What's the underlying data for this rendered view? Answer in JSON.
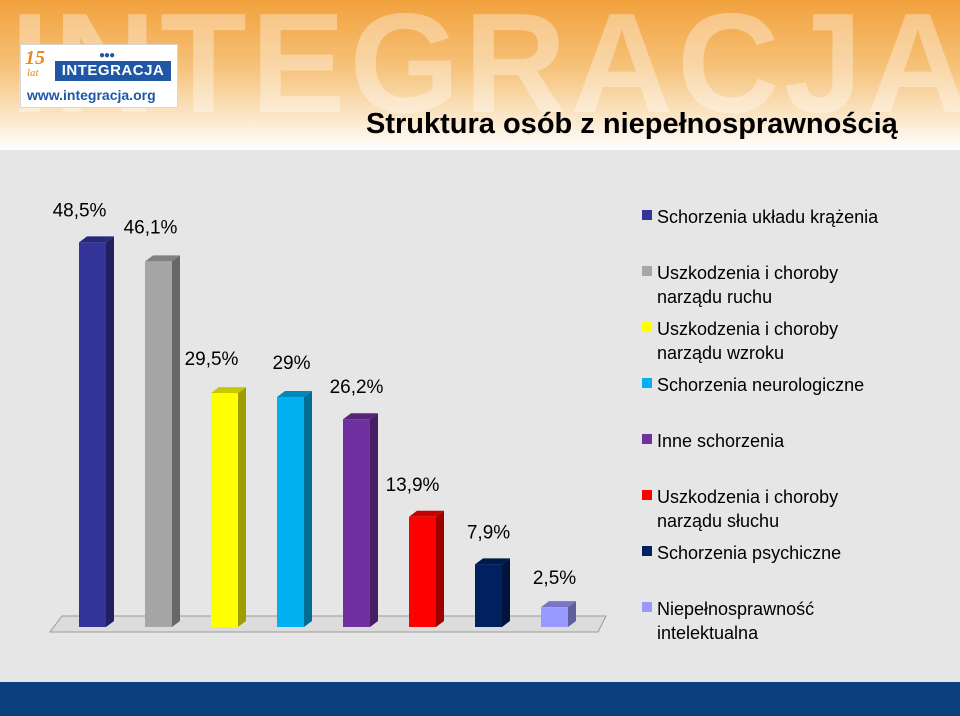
{
  "header": {
    "watermark": "INTEGRACJA",
    "logo": {
      "years": "15",
      "lat": "lat",
      "brand": "INTEGRACJA",
      "url": "www.integracja.org"
    },
    "title": "Struktura osób z niepełnosprawnością"
  },
  "chart_data": {
    "type": "bar",
    "title": "",
    "xlabel": "",
    "ylabel": "",
    "ylim": [
      0,
      50
    ],
    "grid": false,
    "legend_position": "right",
    "categories": [
      "Schorzenia układu krążenia",
      "Uszkodzenia i choroby\nnarządu ruchu",
      "Uszkodzenia i choroby\nnarządu wzroku",
      "Schorzenia neurologiczne",
      "Inne schorzenia",
      "Uszkodzenia i choroby\nnarządu słuchu",
      "Schorzenia psychiczne",
      "Niepełnosprawność\nintelektualna"
    ],
    "values": [
      48.5,
      46.1,
      29.5,
      29,
      26.2,
      13.9,
      7.9,
      2.5
    ],
    "data_labels": [
      "48,5%",
      "46,1%",
      "29,5%",
      "29%",
      "26,2%",
      "13,9%",
      "7,9%",
      "2,5%"
    ],
    "colors": [
      "#33339a",
      "#a6a6a6",
      "#ffff00",
      "#00b0f0",
      "#7030a0",
      "#ff0000",
      "#002060",
      "#9999ff"
    ]
  }
}
